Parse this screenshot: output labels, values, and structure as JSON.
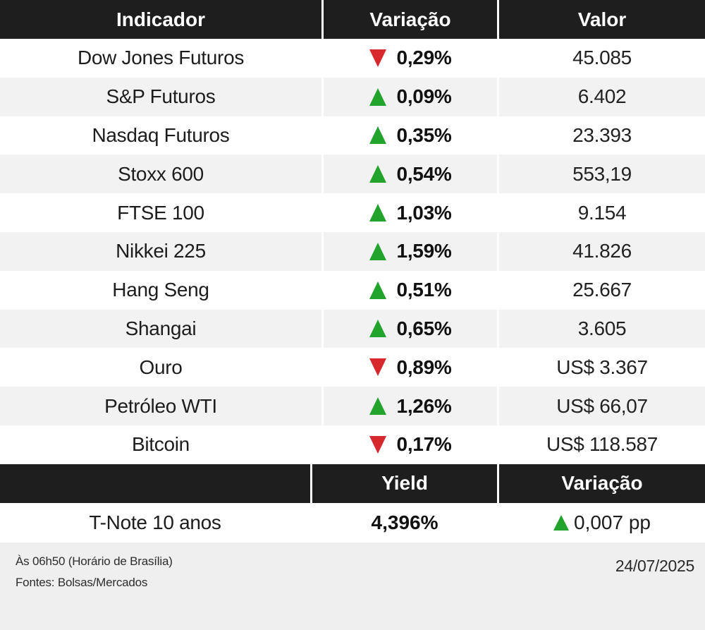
{
  "chart_data": {
    "type": "table",
    "tables": [
      {
        "headers": [
          "Indicador",
          "Variação",
          "Valor"
        ],
        "rows": [
          [
            "Dow Jones Futuros",
            "▼ 0,29%",
            "45.085"
          ],
          [
            "S&P Futuros",
            "▲ 0,09%",
            "6.402"
          ],
          [
            "Nasdaq Futuros",
            "▲ 0,35%",
            "23.393"
          ],
          [
            "Stoxx 600",
            "▲ 0,54%",
            "553,19"
          ],
          [
            "FTSE 100",
            "▲ 1,03%",
            "9.154"
          ],
          [
            "Nikkei 225",
            "▲ 1,59%",
            "41.826"
          ],
          [
            "Hang Seng",
            "▲ 0,51%",
            "25.667"
          ],
          [
            "Shangai",
            "▲ 0,65%",
            "3.605"
          ],
          [
            "Ouro",
            "▼ 0,89%",
            "US$ 3.367"
          ],
          [
            "Petróleo WTI",
            "▲ 1,26%",
            "US$ 66,07"
          ],
          [
            "Bitcoin",
            "▼ 0,17%",
            "US$ 118.587"
          ]
        ]
      },
      {
        "headers": [
          "",
          "Yield",
          "Variação"
        ],
        "rows": [
          [
            "T-Note 10 anos",
            "4,396%",
            "▲ 0,007 pp"
          ]
        ]
      }
    ]
  },
  "table1": {
    "headers": {
      "indicator": "Indicador",
      "variation": "Variação",
      "value": "Valor"
    },
    "rows": [
      {
        "indicator": "Dow Jones Futuros",
        "direction": "down",
        "variation": "0,29%",
        "value": "45.085"
      },
      {
        "indicator": "S&P Futuros",
        "direction": "up",
        "variation": "0,09%",
        "value": "6.402"
      },
      {
        "indicator": "Nasdaq Futuros",
        "direction": "up",
        "variation": "0,35%",
        "value": "23.393"
      },
      {
        "indicator": "Stoxx 600",
        "direction": "up",
        "variation": "0,54%",
        "value": "553,19"
      },
      {
        "indicator": "FTSE 100",
        "direction": "up",
        "variation": "1,03%",
        "value": "9.154"
      },
      {
        "indicator": "Nikkei 225",
        "direction": "up",
        "variation": "1,59%",
        "value": "41.826"
      },
      {
        "indicator": "Hang Seng",
        "direction": "up",
        "variation": "0,51%",
        "value": "25.667"
      },
      {
        "indicator": "Shangai",
        "direction": "up",
        "variation": "0,65%",
        "value": "3.605"
      },
      {
        "indicator": "Ouro",
        "direction": "down",
        "variation": "0,89%",
        "value": "US$ 3.367"
      },
      {
        "indicator": "Petróleo WTI",
        "direction": "up",
        "variation": "1,26%",
        "value": "US$ 66,07"
      },
      {
        "indicator": "Bitcoin",
        "direction": "down",
        "variation": "0,17%",
        "value": "US$ 118.587"
      }
    ]
  },
  "table2": {
    "headers": {
      "indicator": "",
      "yield": "Yield",
      "variation": "Variação"
    },
    "row": {
      "indicator": "T-Note 10 anos",
      "yield": "4,396%",
      "direction": "up",
      "variation": "0,007 pp"
    }
  },
  "footer": {
    "time_note": "Às 06h50 (Horário de Brasília)",
    "sources": "Fontes: Bolsas/Mercados",
    "date": "24/07/2025"
  },
  "colors": {
    "up_green": "#22a32b",
    "down_red": "#d7282d",
    "header_bg": "#1e1e1e",
    "row_alt_bg": "#f2f2f2",
    "footer_bg": "#efefef"
  }
}
